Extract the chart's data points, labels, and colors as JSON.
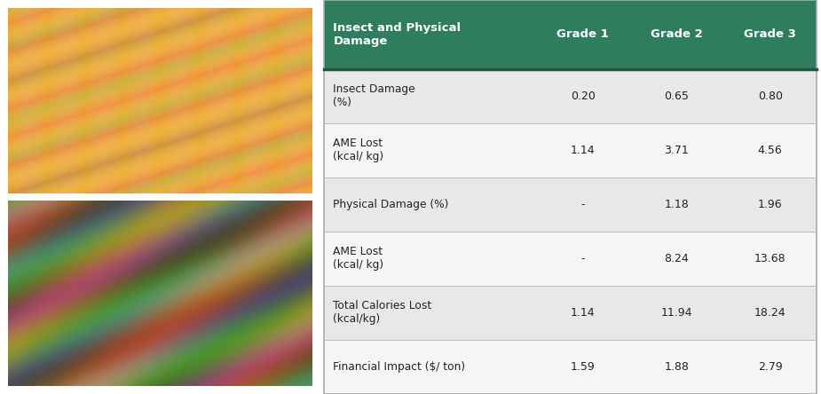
{
  "header": [
    "Insect and Physical\nDamage",
    "Grade 1",
    "Grade 2",
    "Grade 3"
  ],
  "rows": [
    [
      "Insect Damage\n(%)",
      "0.20",
      "0.65",
      "0.80"
    ],
    [
      "AME Lost\n(kcal/ kg)",
      "1.14",
      "3.71",
      "4.56"
    ],
    [
      "Physical Damage (%)",
      "-",
      "1.18",
      "1.96"
    ],
    [
      "AME Lost\n(kcal/ kg)",
      "-",
      "8.24",
      "13.68"
    ],
    [
      "Total Calories Lost\n(kcal/kg)",
      "1.14",
      "11.94",
      "18.24"
    ],
    [
      "Financial Impact ($/ ton)",
      "1.59",
      "1.88",
      "2.79"
    ]
  ],
  "header_bg": "#2E7D5E",
  "header_text_color": "#FFFFFF",
  "row_bg_odd": "#E8E8E8",
  "row_bg_even": "#F5F5F5",
  "row_text_color": "#222222",
  "border_color": "#BBBBBB",
  "header_border_color": "#1a5940",
  "fig_width": 9.25,
  "fig_height": 4.44
}
